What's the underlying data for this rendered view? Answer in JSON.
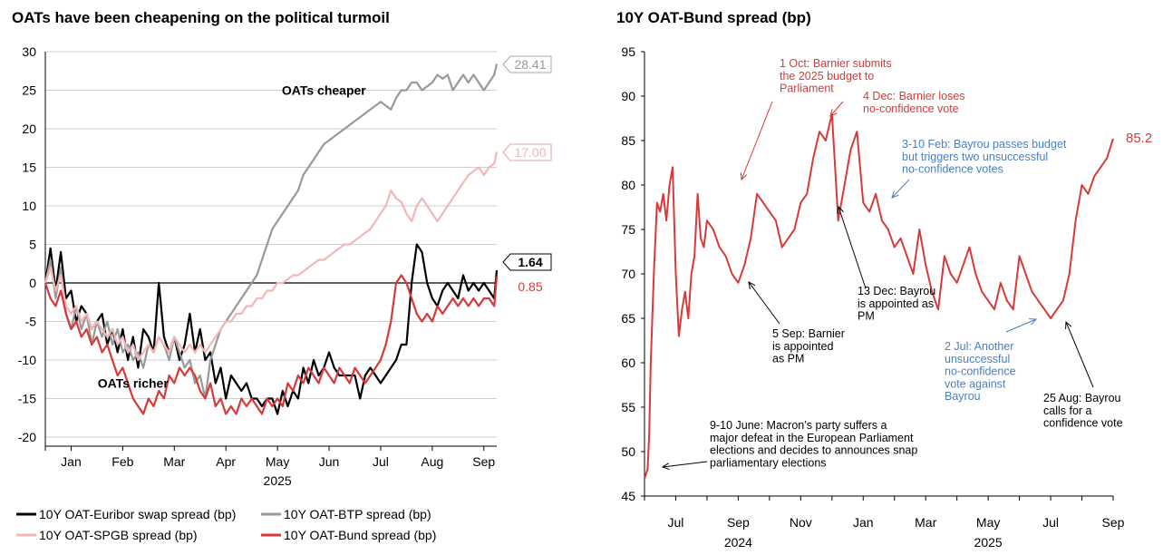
{
  "chart_data": [
    {
      "type": "line",
      "title": "OATs have been cheapening on the political turmoil",
      "xlabel": "2025",
      "ylim": [
        -20,
        30
      ],
      "y_ticks": [
        30,
        25,
        20,
        15,
        10,
        5,
        0,
        -5,
        -10,
        -15,
        -20
      ],
      "x_ticks": [
        "Jan",
        "Feb",
        "Mar",
        "Apr",
        "May",
        "Jun",
        "Jul",
        "Aug",
        "Sep"
      ],
      "x_year": "2025",
      "x_range_months": [
        0,
        8.75
      ],
      "annotations": [
        {
          "text": "OATs cheaper",
          "x": 5.4,
          "y": 25
        },
        {
          "text": "OATs richer",
          "x": 1.7,
          "y": -13
        }
      ],
      "end_labels": [
        {
          "series": "10Y OAT-BTP spread (bp)",
          "text": "28.41",
          "value": 28.41,
          "color": "#999999",
          "boxed": true
        },
        {
          "series": "10Y OAT-SPGB spread (bp)",
          "text": "17.00",
          "value": 17.0,
          "color": "#f4b6b6",
          "boxed": true
        },
        {
          "series": "10Y OAT-Euribor swap spread (bp)",
          "text": "1.64",
          "value": 1.64,
          "color": "#000000",
          "boxed": true
        },
        {
          "series": "10Y OAT-Bund spread (bp)",
          "text": "0.85",
          "value": 0.85,
          "color": "#d63a3a",
          "boxed": false
        }
      ],
      "legend": [
        {
          "label": "10Y OAT-Euribor swap spread (bp)",
          "color": "#000000"
        },
        {
          "label": "10Y OAT-BTP spread (bp)",
          "color": "#999999"
        },
        {
          "label": "10Y OAT-SPGB spread (bp)",
          "color": "#f4b6b6"
        },
        {
          "label": "10Y OAT-Bund spread (bp)",
          "color": "#d63a3a"
        }
      ],
      "series": [
        {
          "name": "10Y OAT-Euribor swap spread (bp)",
          "color": "#000000",
          "x": [
            0,
            0.1,
            0.2,
            0.3,
            0.4,
            0.5,
            0.6,
            0.7,
            0.8,
            0.9,
            1.0,
            1.1,
            1.2,
            1.3,
            1.4,
            1.5,
            1.6,
            1.7,
            1.8,
            1.9,
            2.0,
            2.1,
            2.2,
            2.3,
            2.4,
            2.5,
            2.6,
            2.7,
            2.8,
            2.9,
            3.0,
            3.1,
            3.2,
            3.3,
            3.4,
            3.5,
            3.6,
            3.7,
            3.8,
            3.9,
            4.0,
            4.1,
            4.2,
            4.3,
            4.4,
            4.5,
            4.6,
            4.7,
            4.8,
            4.9,
            5.0,
            5.1,
            5.2,
            5.3,
            5.4,
            5.5,
            5.6,
            5.7,
            5.8,
            5.9,
            6.0,
            6.1,
            6.2,
            6.3,
            6.4,
            6.5,
            6.6,
            6.7,
            6.8,
            6.9,
            7.0,
            7.1,
            7.2,
            7.3,
            7.4,
            7.5,
            7.6,
            7.7,
            7.8,
            7.9,
            8.0,
            8.1,
            8.2,
            8.3,
            8.4,
            8.5,
            8.6,
            8.7,
            8.75
          ],
          "values": [
            0,
            4.5,
            -1,
            4,
            -2,
            -1,
            -5,
            -3,
            -4,
            -6,
            -5,
            -4,
            -8,
            -6,
            -9,
            -6,
            -10,
            -7,
            -11,
            -6,
            -7,
            -9,
            0,
            -7,
            -9,
            -7,
            -10,
            -8,
            -4,
            -9,
            -6,
            -10,
            -9,
            -13,
            -11,
            -15,
            -12,
            -13,
            -14,
            -13,
            -15,
            -15,
            -16,
            -15,
            -15,
            -17,
            -14,
            -16,
            -14,
            -15,
            -11,
            -13,
            -10,
            -12,
            -11,
            -9,
            -11,
            -12,
            -12,
            -12,
            -12,
            -15,
            -12,
            -11,
            -12,
            -13,
            -12,
            -11,
            -10,
            -8,
            -8,
            0,
            5,
            4,
            0,
            -2,
            -3,
            -1,
            0,
            -1,
            -2,
            1,
            -1,
            0,
            -1,
            0,
            -1,
            -2,
            1.64
          ]
        },
        {
          "name": "10Y OAT-BTP spread (bp)",
          "color": "#999999",
          "x": [
            0,
            0.1,
            0.2,
            0.3,
            0.4,
            0.5,
            0.6,
            0.7,
            0.8,
            0.9,
            1.0,
            1.1,
            1.2,
            1.3,
            1.4,
            1.5,
            1.6,
            1.7,
            1.8,
            1.9,
            2.0,
            2.1,
            2.2,
            2.3,
            2.4,
            2.5,
            2.6,
            2.7,
            2.8,
            2.9,
            3.0,
            3.1,
            3.2,
            3.3,
            3.4,
            3.5,
            3.6,
            3.7,
            3.8,
            3.9,
            4.0,
            4.1,
            4.2,
            4.3,
            4.4,
            4.5,
            4.6,
            4.7,
            4.8,
            4.9,
            5.0,
            5.1,
            5.2,
            5.3,
            5.4,
            5.5,
            5.6,
            5.7,
            5.8,
            5.9,
            6.0,
            6.1,
            6.2,
            6.3,
            6.4,
            6.5,
            6.6,
            6.7,
            6.8,
            6.9,
            7.0,
            7.1,
            7.2,
            7.3,
            7.4,
            7.5,
            7.6,
            7.7,
            7.8,
            7.9,
            8.0,
            8.1,
            8.2,
            8.3,
            8.4,
            8.5,
            8.6,
            8.7,
            8.75
          ],
          "values": [
            0,
            3,
            -2,
            2,
            -4,
            -6,
            -3,
            -6,
            -4,
            -8,
            -5,
            -7,
            -5,
            -8,
            -6,
            -9,
            -8,
            -10,
            -9,
            -11,
            -8,
            -9,
            -7,
            -8,
            -10,
            -7,
            -9,
            -11,
            -10,
            -13,
            -12,
            -15,
            -10,
            -8,
            -6,
            -5,
            -4,
            -3,
            -2,
            -1,
            0,
            1,
            3,
            5,
            7,
            8,
            9,
            10,
            11,
            12,
            14,
            15,
            16,
            17,
            18,
            18.5,
            19,
            19.5,
            20,
            20.5,
            21,
            21.5,
            22,
            22.5,
            23,
            23.5,
            23,
            22.5,
            24,
            25,
            25,
            26,
            26,
            25,
            25.5,
            26,
            27,
            26.5,
            27,
            25,
            26,
            27,
            26,
            27,
            26,
            25,
            26,
            27,
            28.41
          ]
        },
        {
          "name": "10Y OAT-SPGB spread (bp)",
          "color": "#f4b6b6",
          "x": [
            0,
            0.1,
            0.2,
            0.3,
            0.4,
            0.5,
            0.6,
            0.7,
            0.8,
            0.9,
            1.0,
            1.1,
            1.2,
            1.3,
            1.4,
            1.5,
            1.6,
            1.7,
            1.8,
            1.9,
            2.0,
            2.1,
            2.2,
            2.3,
            2.4,
            2.5,
            2.6,
            2.7,
            2.8,
            2.9,
            3.0,
            3.1,
            3.2,
            3.3,
            3.4,
            3.5,
            3.6,
            3.7,
            3.8,
            3.9,
            4.0,
            4.1,
            4.2,
            4.3,
            4.4,
            4.5,
            4.6,
            4.7,
            4.8,
            4.9,
            5.0,
            5.1,
            5.2,
            5.3,
            5.4,
            5.5,
            5.6,
            5.7,
            5.8,
            5.9,
            6.0,
            6.1,
            6.2,
            6.3,
            6.4,
            6.5,
            6.6,
            6.7,
            6.8,
            6.9,
            7.0,
            7.1,
            7.2,
            7.3,
            7.4,
            7.5,
            7.6,
            7.7,
            7.8,
            7.9,
            8.0,
            8.1,
            8.2,
            8.3,
            8.4,
            8.5,
            8.6,
            8.7,
            8.75
          ],
          "values": [
            0,
            2,
            -1,
            1,
            -3,
            -4,
            -3,
            -5,
            -4,
            -6,
            -5,
            -6,
            -7,
            -6,
            -8,
            -7,
            -9,
            -8,
            -10,
            -9,
            -8,
            -9,
            -7,
            -8,
            -9,
            -7,
            -8,
            -9,
            -8,
            -9,
            -8,
            -9,
            -8,
            -7,
            -6,
            -5,
            -5,
            -4,
            -4,
            -3,
            -3,
            -2,
            -2,
            -1,
            -1,
            0,
            0,
            0.5,
            1,
            1,
            1.5,
            2,
            2.5,
            3,
            3,
            3.5,
            4,
            4.5,
            5,
            5,
            5.5,
            6,
            6.5,
            7,
            8,
            9,
            10,
            12,
            11,
            10.5,
            9,
            8,
            10,
            11,
            10,
            9,
            8,
            9,
            10,
            11,
            12,
            13,
            14,
            14.5,
            15,
            14,
            15,
            15.5,
            17.0
          ]
        },
        {
          "name": "10Y OAT-Bund spread (bp)",
          "color": "#d63a3a",
          "x": [
            0,
            0.1,
            0.2,
            0.3,
            0.4,
            0.5,
            0.6,
            0.7,
            0.8,
            0.9,
            1.0,
            1.1,
            1.2,
            1.3,
            1.4,
            1.5,
            1.6,
            1.7,
            1.8,
            1.9,
            2.0,
            2.1,
            2.2,
            2.3,
            2.4,
            2.5,
            2.6,
            2.7,
            2.8,
            2.9,
            3.0,
            3.1,
            3.2,
            3.3,
            3.4,
            3.5,
            3.6,
            3.7,
            3.8,
            3.9,
            4.0,
            4.1,
            4.2,
            4.3,
            4.4,
            4.5,
            4.6,
            4.7,
            4.8,
            4.9,
            5.0,
            5.1,
            5.2,
            5.3,
            5.4,
            5.5,
            5.6,
            5.7,
            5.8,
            5.9,
            6.0,
            6.1,
            6.2,
            6.3,
            6.4,
            6.5,
            6.6,
            6.7,
            6.8,
            6.9,
            7.0,
            7.1,
            7.2,
            7.3,
            7.4,
            7.5,
            7.6,
            7.7,
            7.8,
            7.9,
            8.0,
            8.1,
            8.2,
            8.3,
            8.4,
            8.5,
            8.6,
            8.7,
            8.75
          ],
          "values": [
            0,
            -2,
            -3,
            -1,
            -4,
            -6,
            -5,
            -7,
            -6,
            -8,
            -7,
            -9,
            -8,
            -10,
            -12,
            -11,
            -13,
            -15,
            -16,
            -17,
            -15,
            -16,
            -14,
            -15,
            -12,
            -13,
            -11,
            -12,
            -11,
            -12,
            -14,
            -15,
            -13,
            -16,
            -15,
            -17,
            -16,
            -17,
            -15,
            -16,
            -15,
            -16,
            -17,
            -15,
            -16,
            -15,
            -16,
            -13,
            -14,
            -12,
            -13,
            -11,
            -12,
            -13,
            -11,
            -12,
            -13,
            -11,
            -12,
            -13,
            -11,
            -12,
            -13,
            -12,
            -11,
            -10,
            -8,
            -5,
            0,
            1,
            0,
            -2,
            -4,
            -5,
            -4,
            -5,
            -3,
            -4,
            -3,
            -2,
            -3,
            -2,
            -3,
            -2,
            -3,
            -2,
            -2,
            -3,
            0.85
          ]
        }
      ]
    },
    {
      "type": "line",
      "title": "10Y OAT-Bund spread (bp)",
      "ylim": [
        45,
        95
      ],
      "y_ticks": [
        95,
        90,
        85,
        80,
        75,
        70,
        65,
        60,
        55,
        50,
        45
      ],
      "x_ticks": [
        "Jul",
        "Sep",
        "Nov",
        "Jan",
        "Mar",
        "May",
        "Jul",
        "Sep"
      ],
      "x_years": [
        {
          "text": "2024",
          "position": "under Sep (left)"
        },
        {
          "text": "2025",
          "position": "under May"
        }
      ],
      "x_range_months": [
        0,
        15.0
      ],
      "end_label": {
        "text": "85.2",
        "value": 85.2,
        "color": "#d63a3a"
      },
      "annotations": [
        {
          "text": "1 Oct: Barnier submits the 2025 budget to Parliament",
          "color": "#d63a3a",
          "x": 4.2,
          "y": 91
        },
        {
          "text": "4 Dec: Barnier loses no-confidence vote",
          "color": "#d63a3a",
          "x": 6.3,
          "y": 88
        },
        {
          "text": "3-10 Feb: Bayrou passes budget but triggers two unsuccessful no-confidence votes",
          "color": "#4a7fc1",
          "x": 8.3,
          "y": 81
        },
        {
          "text": "13 Dec: Bayrou is appointed as PM",
          "color": "#000000",
          "x": 7.2,
          "y": 69
        },
        {
          "text": "5 Sep: Barnier is appointed as PM",
          "color": "#000000",
          "x": 3.5,
          "y": 66
        },
        {
          "text": "2 Jul: Another unsuccessful no-confidence vote against Bayrou",
          "color": "#4a7fc1",
          "x": 12.2,
          "y": 61
        },
        {
          "text": "25 Aug: Bayrou calls for a confidence vote",
          "color": "#000000",
          "x": 13.5,
          "y": 53
        },
        {
          "text": "9-10 June: Macron’s party suffers a major defeat in the European Parliament elections and decides to announces snap parliamentary elections",
          "color": "#000000",
          "x": 2.3,
          "y": 52
        }
      ],
      "series": [
        {
          "name": "10Y OAT-Bund spread (bp)",
          "color": "#d63a3a",
          "x": [
            0,
            0.05,
            0.1,
            0.15,
            0.2,
            0.25,
            0.3,
            0.4,
            0.5,
            0.6,
            0.7,
            0.8,
            0.9,
            1.0,
            1.1,
            1.2,
            1.3,
            1.4,
            1.5,
            1.6,
            1.7,
            1.8,
            1.9,
            2.0,
            2.2,
            2.4,
            2.6,
            2.8,
            3.0,
            3.2,
            3.4,
            3.6,
            3.8,
            4.0,
            4.2,
            4.4,
            4.6,
            4.8,
            5.0,
            5.2,
            5.4,
            5.6,
            5.8,
            6.0,
            6.2,
            6.4,
            6.6,
            6.8,
            7.0,
            7.2,
            7.4,
            7.6,
            7.8,
            8.0,
            8.2,
            8.4,
            8.6,
            8.8,
            9.0,
            9.2,
            9.4,
            9.6,
            9.8,
            10.0,
            10.2,
            10.4,
            10.6,
            10.8,
            11.0,
            11.2,
            11.4,
            11.6,
            11.8,
            12.0,
            12.2,
            12.4,
            12.6,
            12.8,
            13.0,
            13.2,
            13.4,
            13.6,
            13.8,
            14.0,
            14.2,
            14.4,
            14.6,
            14.8,
            15.0
          ],
          "values": [
            47,
            47.5,
            48,
            52,
            60,
            65,
            70,
            78,
            77,
            79,
            76,
            80,
            82,
            70,
            63,
            66,
            68,
            65,
            70,
            72,
            79,
            74,
            73,
            76,
            75,
            73,
            72,
            70,
            69,
            71,
            74,
            79,
            78,
            77,
            76,
            73,
            74,
            75,
            78,
            79,
            83,
            86,
            85,
            88,
            76,
            80,
            84,
            86,
            78,
            77,
            79,
            76,
            75,
            73,
            74,
            72,
            70,
            75,
            71,
            68,
            66,
            72,
            70,
            69,
            71,
            73,
            70,
            68,
            67,
            66,
            69,
            67,
            66,
            72,
            70,
            68,
            67,
            66,
            65,
            66,
            67,
            70,
            76,
            80,
            79,
            81,
            82,
            83,
            85.2
          ]
        }
      ]
    }
  ]
}
